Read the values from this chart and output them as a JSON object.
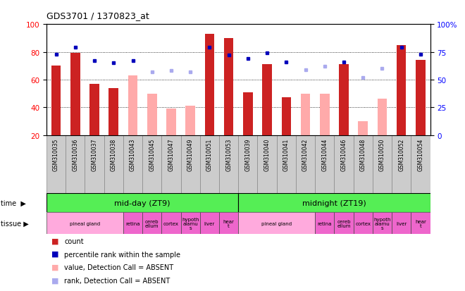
{
  "title": "GDS3701 / 1370823_at",
  "samples": [
    "GSM310035",
    "GSM310036",
    "GSM310037",
    "GSM310038",
    "GSM310043",
    "GSM310045",
    "GSM310047",
    "GSM310049",
    "GSM310051",
    "GSM310053",
    "GSM310039",
    "GSM310040",
    "GSM310041",
    "GSM310042",
    "GSM310044",
    "GSM310046",
    "GSM310048",
    "GSM310050",
    "GSM310052",
    "GSM310054"
  ],
  "red_bars": [
    70,
    79,
    57,
    54,
    null,
    null,
    null,
    null,
    93,
    90,
    51,
    71,
    47,
    null,
    null,
    71,
    null,
    null,
    85,
    74
  ],
  "pink_bars": [
    null,
    null,
    null,
    null,
    63,
    50,
    39,
    41,
    null,
    null,
    null,
    null,
    null,
    50,
    50,
    null,
    30,
    46,
    null,
    null
  ],
  "blue_dots": [
    73,
    79,
    67,
    65,
    67,
    null,
    null,
    null,
    79,
    72,
    69,
    74,
    66,
    null,
    null,
    66,
    null,
    null,
    79,
    73
  ],
  "lavender_dots": [
    null,
    null,
    null,
    null,
    null,
    57,
    58,
    57,
    null,
    null,
    null,
    null,
    null,
    59,
    62,
    null,
    52,
    60,
    null,
    null
  ],
  "ylim_left": [
    20,
    100
  ],
  "yticks_left": [
    20,
    40,
    60,
    80,
    100
  ],
  "yticks_right": [
    0,
    25,
    50,
    75,
    100
  ],
  "red_color": "#cc2222",
  "pink_color": "#ffaaaa",
  "blue_color": "#0000bb",
  "lavender_color": "#aaaaee",
  "green_time": "#55ee55",
  "tissue_light_pink": "#ffaadd",
  "tissue_dark_pink": "#ee66cc",
  "tick_label_bg": "#cccccc",
  "legend_items": [
    {
      "color": "#cc2222",
      "label": "count"
    },
    {
      "color": "#0000bb",
      "label": "percentile rank within the sample"
    },
    {
      "color": "#ffaaaa",
      "label": "value, Detection Call = ABSENT"
    },
    {
      "color": "#aaaaee",
      "label": "rank, Detection Call = ABSENT"
    }
  ],
  "tissue_groups": [
    {
      "label": "pineal gland",
      "start": 0,
      "end": 3,
      "color": "#ffaadd"
    },
    {
      "label": "retina",
      "start": 4,
      "end": 4,
      "color": "#ee66cc"
    },
    {
      "label": "cereb\nellum",
      "start": 5,
      "end": 5,
      "color": "#ee66cc"
    },
    {
      "label": "cortex",
      "start": 6,
      "end": 6,
      "color": "#ee66cc"
    },
    {
      "label": "hypoth\nalamu\ns",
      "start": 7,
      "end": 7,
      "color": "#ee66cc"
    },
    {
      "label": "liver",
      "start": 8,
      "end": 8,
      "color": "#ee66cc"
    },
    {
      "label": "hear\nt",
      "start": 9,
      "end": 9,
      "color": "#ee66cc"
    },
    {
      "label": "pineal gland",
      "start": 10,
      "end": 13,
      "color": "#ffaadd"
    },
    {
      "label": "retina",
      "start": 14,
      "end": 14,
      "color": "#ee66cc"
    },
    {
      "label": "cereb\nellum",
      "start": 15,
      "end": 15,
      "color": "#ee66cc"
    },
    {
      "label": "cortex",
      "start": 16,
      "end": 16,
      "color": "#ee66cc"
    },
    {
      "label": "hypoth\nalamu\ns",
      "start": 17,
      "end": 17,
      "color": "#ee66cc"
    },
    {
      "label": "liver",
      "start": 18,
      "end": 18,
      "color": "#ee66cc"
    },
    {
      "label": "hear\nt",
      "start": 19,
      "end": 19,
      "color": "#ee66cc"
    }
  ]
}
